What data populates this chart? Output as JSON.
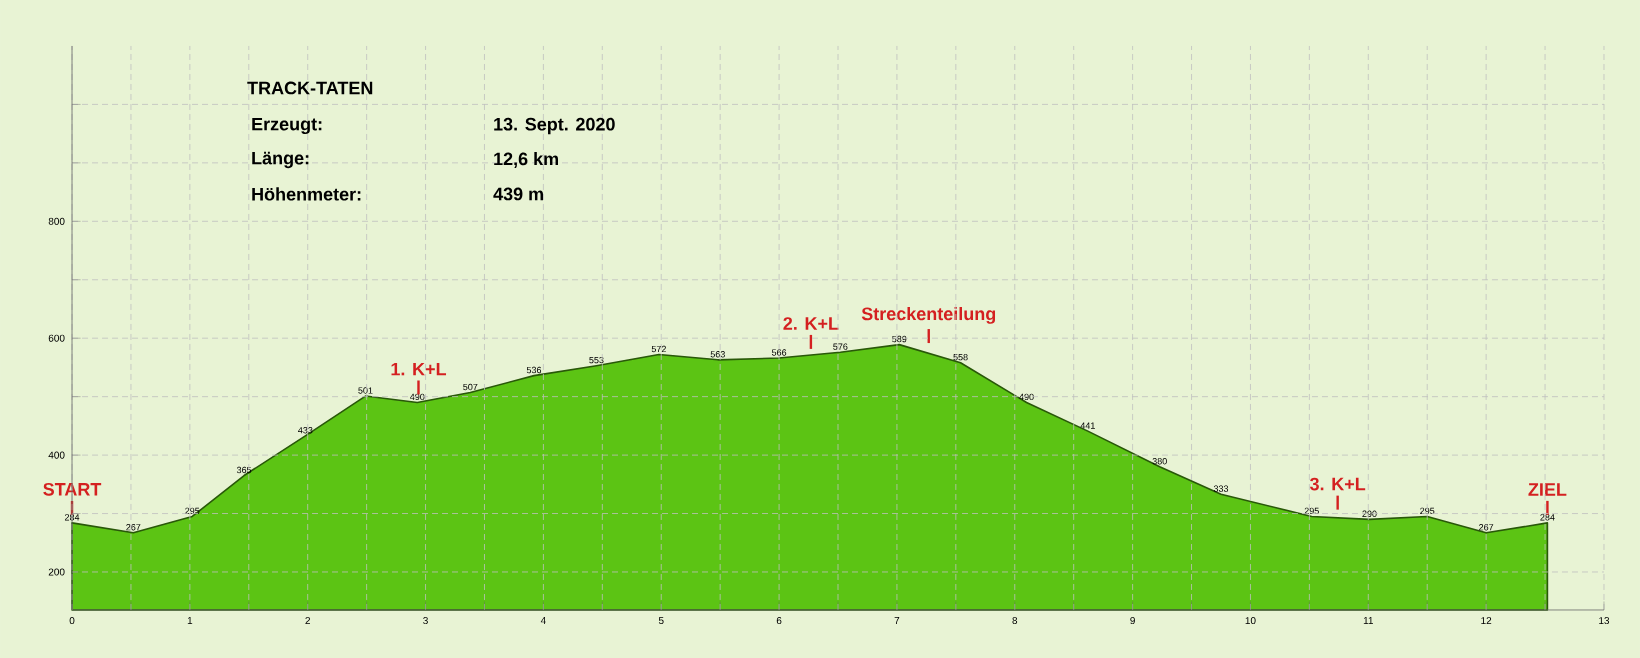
{
  "chart_data": {
    "type": "area",
    "title": "TRACK-TATEN",
    "annotations": [
      "Erzeugt:",
      "13. Sept. 2020",
      "Länge:",
      "12,6 km",
      "Höhenmeter:",
      "439 m",
      {
        "text": "START",
        "x": 0,
        "y": 284
      },
      {
        "text": "1. K+L",
        "x": 2.94,
        "y": 490
      },
      {
        "text": "2. K+L",
        "x": 6.27,
        "y": 568
      },
      {
        "text": "Streckenteilung",
        "x": 7.27,
        "y": 578
      },
      {
        "text": "3. K+L",
        "x": 10.74,
        "y": 293
      },
      {
        "text": "ZIEL",
        "x": 12.52,
        "y": 284
      }
    ],
    "x": [
      0,
      0.52,
      1.02,
      1.46,
      1.98,
      2.49,
      2.93,
      3.38,
      3.92,
      4.45,
      4.98,
      5.48,
      6.0,
      6.52,
      7.02,
      7.54,
      8.1,
      8.62,
      9.23,
      9.75,
      10.52,
      11.01,
      11.5,
      12.0,
      12.52
    ],
    "series": [
      {
        "color": "#5cc414",
        "values": [
          284,
          267,
          295,
          365,
          433,
          501,
          490,
          507,
          536,
          553,
          572,
          563,
          566,
          576,
          589,
          558,
          490,
          441,
          380,
          333,
          295,
          290,
          295,
          267,
          284
        ],
        "value_labels": [
          "284",
          "267",
          "295",
          "365",
          "433",
          "501",
          "490",
          "507",
          "536",
          "553",
          "572",
          "563",
          "566",
          "576",
          "589",
          "558",
          "490",
          "441",
          "380",
          "333",
          "295",
          "290",
          "295",
          "267",
          "284"
        ]
      }
    ],
    "xlim": [
      0,
      13
    ],
    "xticks": [
      0,
      {
        "value": 0.5,
        "label": null
      },
      1,
      {
        "value": 1.5,
        "label": null
      },
      2,
      {
        "value": 2.5,
        "label": null
      },
      3,
      {
        "value": 3.5,
        "label": null
      },
      4,
      {
        "value": 4.5,
        "label": null
      },
      5,
      {
        "value": 5.5,
        "label": null
      },
      6,
      {
        "value": 6.5,
        "label": null
      },
      7,
      {
        "value": 7.5,
        "label": null
      },
      8,
      {
        "value": 8.5,
        "label": null
      },
      9,
      {
        "value": 9.5,
        "label": null
      },
      10,
      {
        "value": 10.5,
        "label": null
      },
      11,
      {
        "value": 11.5,
        "label": null
      },
      12,
      {
        "value": 12.5,
        "label": null
      },
      13
    ],
    "ylim": [
      135,
      1100
    ],
    "yticks": [
      200,
      {
        "value": 300,
        "label": null
      },
      400,
      {
        "value": 500,
        "label": null
      },
      600,
      {
        "value": 700,
        "label": null
      },
      800,
      {
        "value": 900,
        "label": null
      },
      {
        "value": 1000,
        "label": null
      }
    ],
    "grid": true
  }
}
